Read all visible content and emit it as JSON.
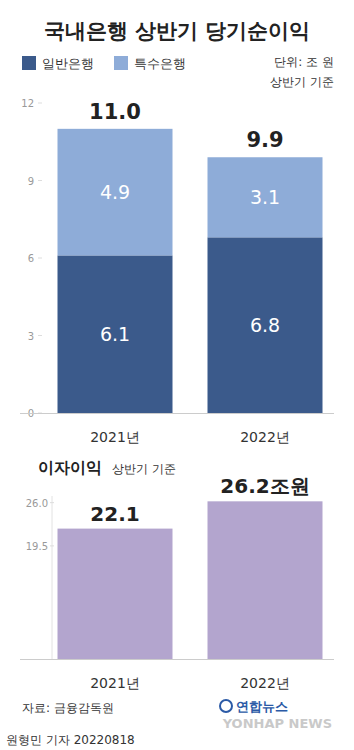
{
  "chart_data": [
    {
      "type": "bar",
      "title": "국내은행 상반기 당기순이익",
      "unit": "단위: 조 원",
      "subtitle": "상반기 기준",
      "categories": [
        "2021년",
        "2022년"
      ],
      "series": [
        {
          "name": "일반은행",
          "color": "#3b5a8b",
          "values": [
            6.1,
            6.8
          ]
        },
        {
          "name": "특수은행",
          "color": "#8eacd8",
          "values": [
            4.9,
            3.1
          ]
        }
      ],
      "totals": {
        "values": [
          11.0,
          9.9
        ],
        "value_labels": [
          "11.0",
          "9.9"
        ]
      },
      "stacked": true,
      "data_labels": true,
      "legend": "top-left",
      "grid": false,
      "ylim": [
        0,
        12
      ],
      "yticks": [
        0,
        3,
        6,
        9,
        12
      ]
    },
    {
      "type": "bar",
      "title": "이자이익",
      "subtitle": "상반기 기준",
      "categories": [
        "2021년",
        "2022년"
      ],
      "values": [
        22.1,
        26.2
      ],
      "value_labels": [
        "22.1",
        "26.2조원"
      ],
      "color": "#b3a5ce",
      "data_labels": true,
      "grid": false,
      "ylim": [
        2.5,
        27
      ],
      "yticks": [
        {
          "value": 19.5,
          "label": "19.5"
        },
        {
          "value": 26,
          "label": "26.0"
        }
      ]
    }
  ],
  "footer": {
    "source": "자료: 금융감독원",
    "logo": "연합뉴스",
    "watermark": "YONHAP NEWS",
    "byline": "원형민 기자 20220818"
  }
}
